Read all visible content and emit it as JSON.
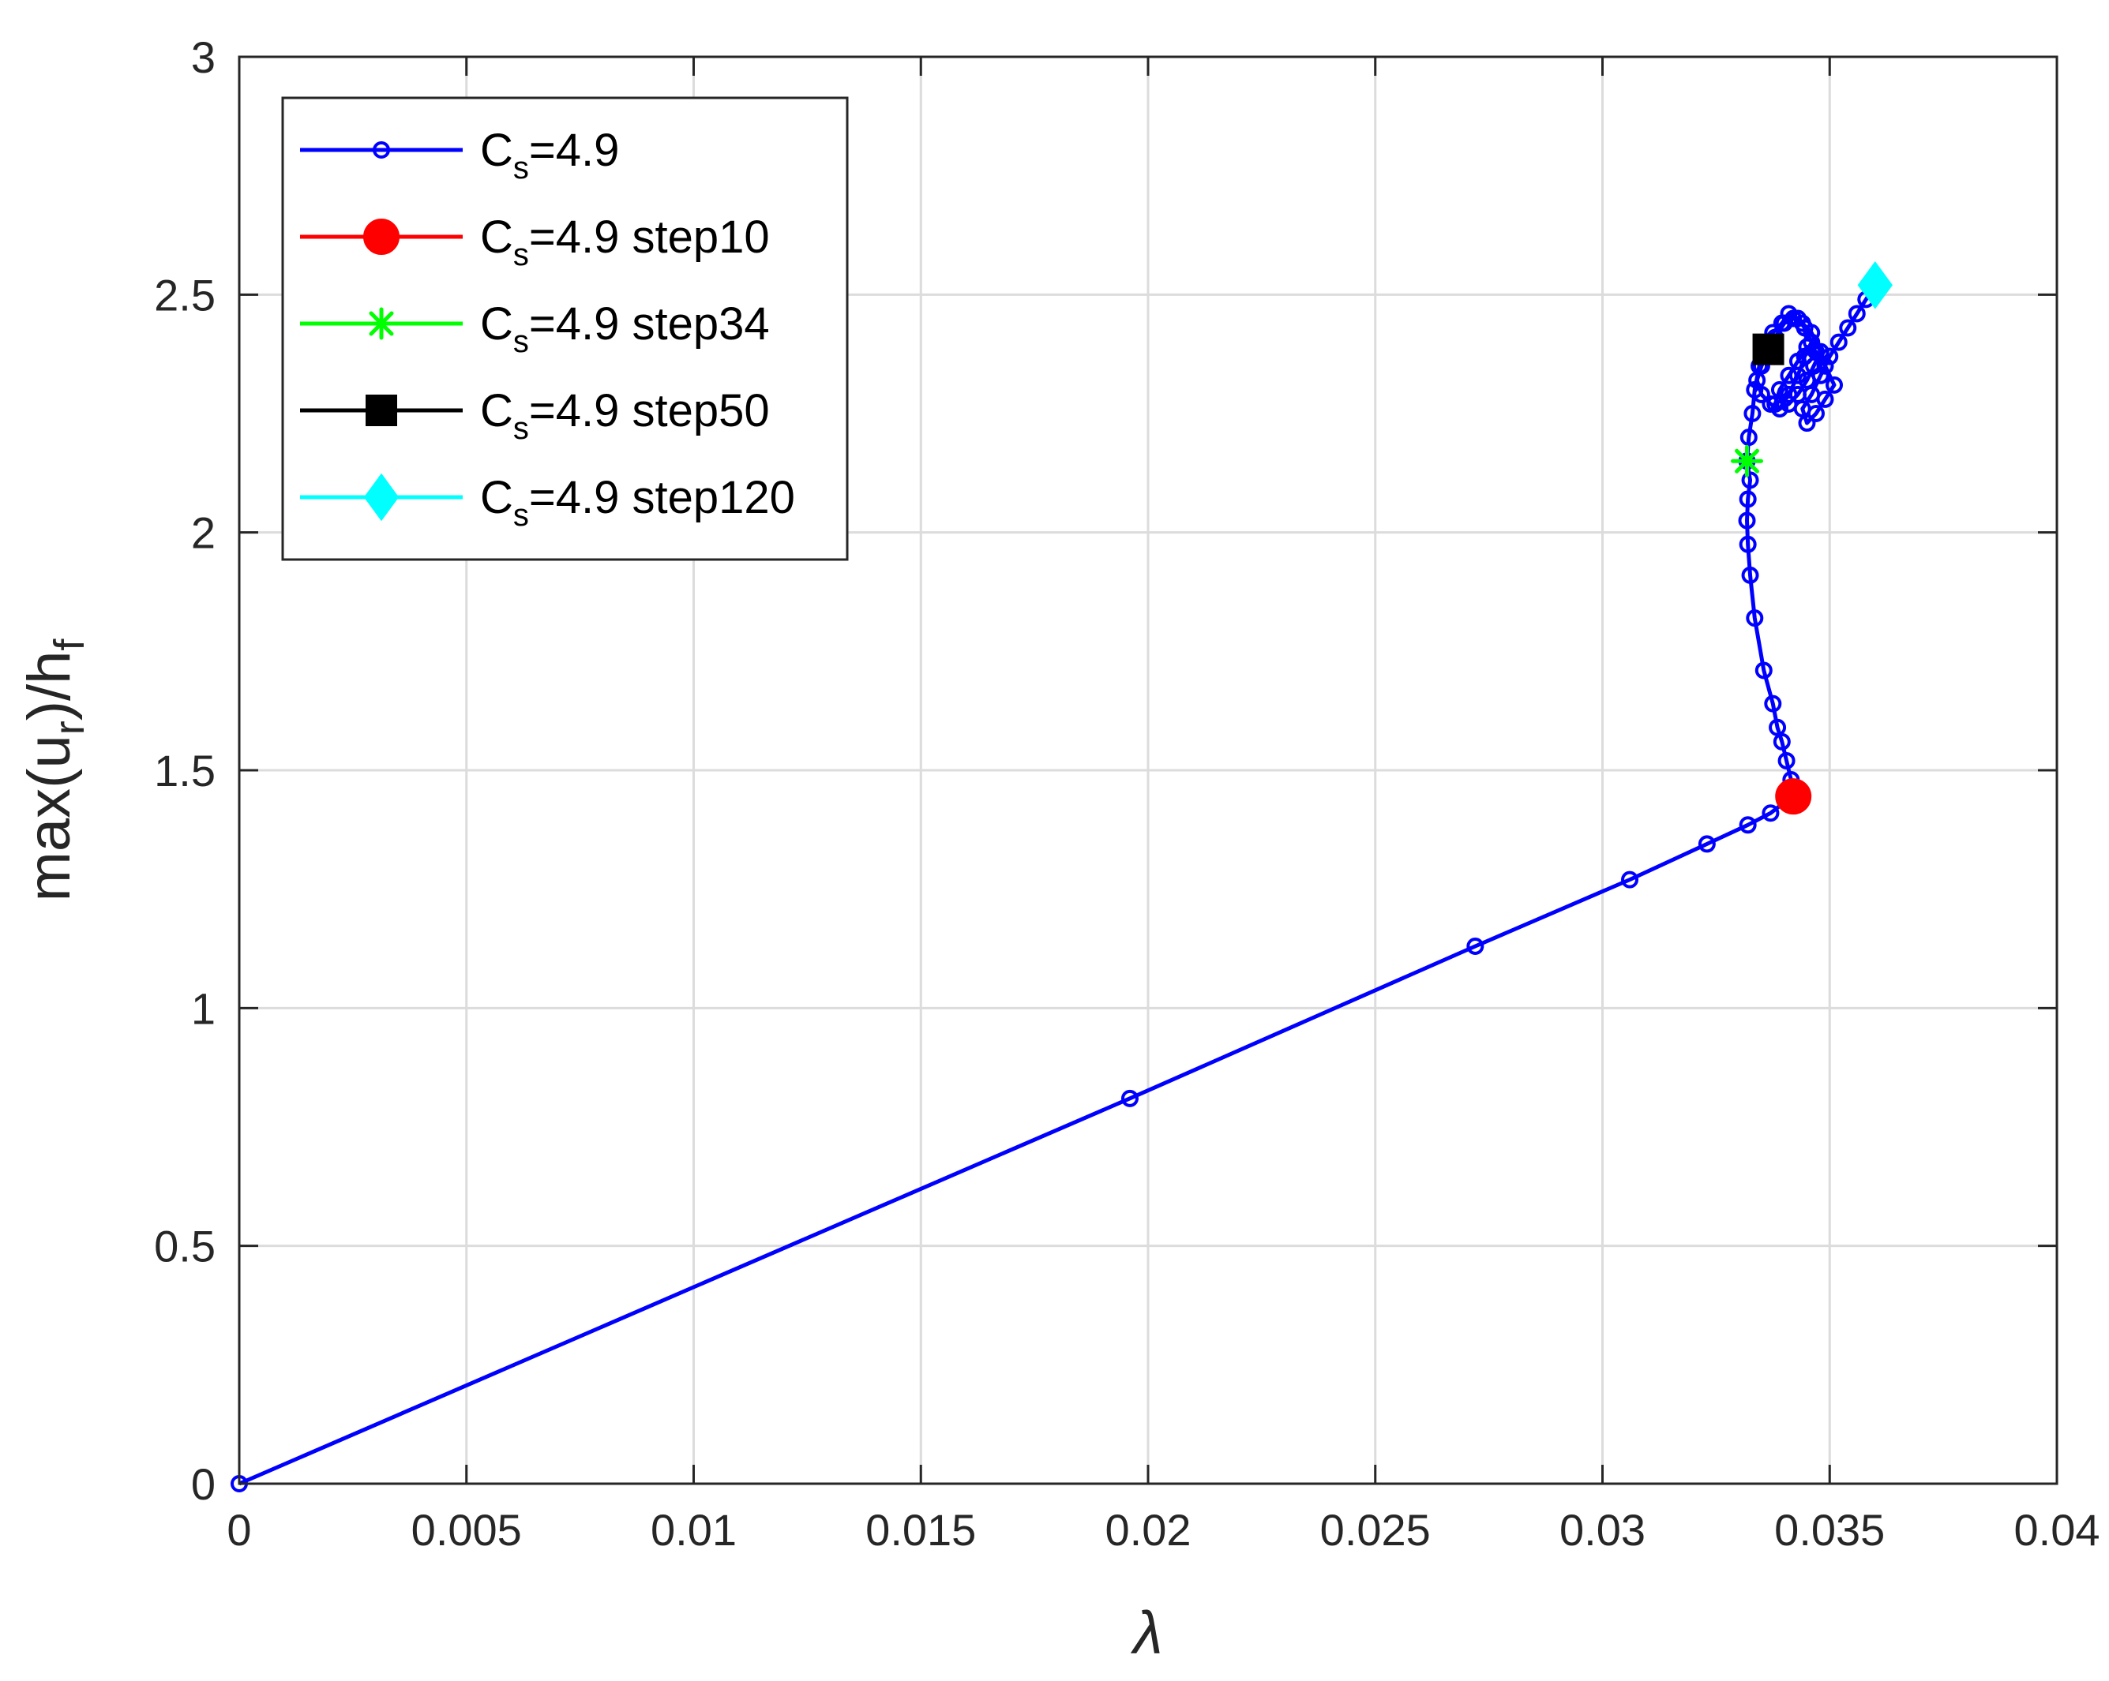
{
  "chart_data": {
    "type": "line",
    "xlabel": "λ",
    "ylabel": {
      "main": "max(u",
      "sub1": "r",
      "mid": ")/h",
      "sub2": "f"
    },
    "xlim": [
      0,
      0.04
    ],
    "ylim": [
      0,
      3
    ],
    "grid": true,
    "legend_position": "top-left",
    "x_ticks": [
      0,
      0.005,
      0.01,
      0.015,
      0.02,
      0.025,
      0.03,
      0.035,
      0.04
    ],
    "x_tick_labels": [
      "0",
      "0.005",
      "0.01",
      "0.015",
      "0.02",
      "0.025",
      "0.03",
      "0.035",
      "0.04"
    ],
    "y_ticks": [
      0,
      0.5,
      1,
      1.5,
      2,
      2.5,
      3
    ],
    "y_tick_labels": [
      "0",
      "0.5",
      "1",
      "1.5",
      "2",
      "2.5",
      "3"
    ],
    "series": [
      {
        "name": "C_s=4.9",
        "label": {
          "base": "C",
          "sub": "s",
          "rest": "=4.9"
        },
        "color": "#0000ff",
        "marker": "circle-open",
        "x": [
          0,
          0.0196,
          0.0272,
          0.0306,
          0.0323,
          0.0332,
          0.0337,
          0.0341,
          0.03415,
          0.03405,
          0.03395,
          0.03385,
          0.03375,
          0.03355,
          0.03335,
          0.03325,
          0.0332,
          0.03318,
          0.0332,
          0.03325,
          0.03318,
          0.03322,
          0.0333,
          0.03335,
          0.03345,
          0.0336,
          0.03375,
          0.03395,
          0.0341,
          0.0343,
          0.03445,
          0.0346,
          0.03445,
          0.0343,
          0.0341,
          0.0339,
          0.0337,
          0.0335,
          0.0334,
          0.0335,
          0.03365,
          0.0338,
          0.034,
          0.0342,
          0.0344,
          0.0346,
          0.0348,
          0.03465,
          0.0345,
          0.0343,
          0.0341,
          0.0339,
          0.0338,
          0.0339,
          0.0341,
          0.0343,
          0.0345,
          0.0347,
          0.0349,
          0.0351,
          0.0349,
          0.0347,
          0.0345,
          0.0344,
          0.0346,
          0.0348,
          0.035,
          0.0352,
          0.0354,
          0.0356,
          0.0358,
          0.036
        ],
        "y": [
          0,
          0.81,
          1.13,
          1.27,
          1.345,
          1.385,
          1.41,
          1.44,
          1.48,
          1.52,
          1.56,
          1.59,
          1.64,
          1.71,
          1.82,
          1.91,
          1.975,
          2.025,
          2.07,
          2.11,
          2.15,
          2.2,
          2.25,
          2.3,
          2.35,
          2.39,
          2.42,
          2.44,
          2.46,
          2.45,
          2.43,
          2.4,
          2.37,
          2.33,
          2.29,
          2.26,
          2.27,
          2.29,
          2.32,
          2.35,
          2.38,
          2.41,
          2.44,
          2.45,
          2.44,
          2.42,
          2.38,
          2.35,
          2.32,
          2.29,
          2.27,
          2.26,
          2.27,
          2.3,
          2.33,
          2.36,
          2.39,
          2.38,
          2.35,
          2.31,
          2.28,
          2.25,
          2.23,
          2.26,
          2.29,
          2.33,
          2.37,
          2.4,
          2.43,
          2.46,
          2.49,
          2.52
        ]
      },
      {
        "name": "C_s=4.9 step10",
        "label": {
          "base": "C",
          "sub": "s",
          "rest": "=4.9 step10"
        },
        "color": "#ff0000",
        "marker": "circle-filled",
        "x": [
          0.0342
        ],
        "y": [
          1.445
        ]
      },
      {
        "name": "C_s=4.9 step34",
        "label": {
          "base": "C",
          "sub": "s",
          "rest": "=4.9 step34"
        },
        "color": "#00ff00",
        "marker": "asterisk",
        "x": [
          0.03318
        ],
        "y": [
          2.15
        ]
      },
      {
        "name": "C_s=4.9 step50",
        "label": {
          "base": "C",
          "sub": "s",
          "rest": "=4.9 step50"
        },
        "color": "#000000",
        "marker": "square",
        "x": [
          0.03365
        ],
        "y": [
          2.385
        ]
      },
      {
        "name": "C_s=4.9 step120",
        "label": {
          "base": "C",
          "sub": "s",
          "rest": "=4.9 step120"
        },
        "color": "#00ffff",
        "marker": "diamond",
        "x": [
          0.036
        ],
        "y": [
          2.52
        ]
      }
    ]
  }
}
